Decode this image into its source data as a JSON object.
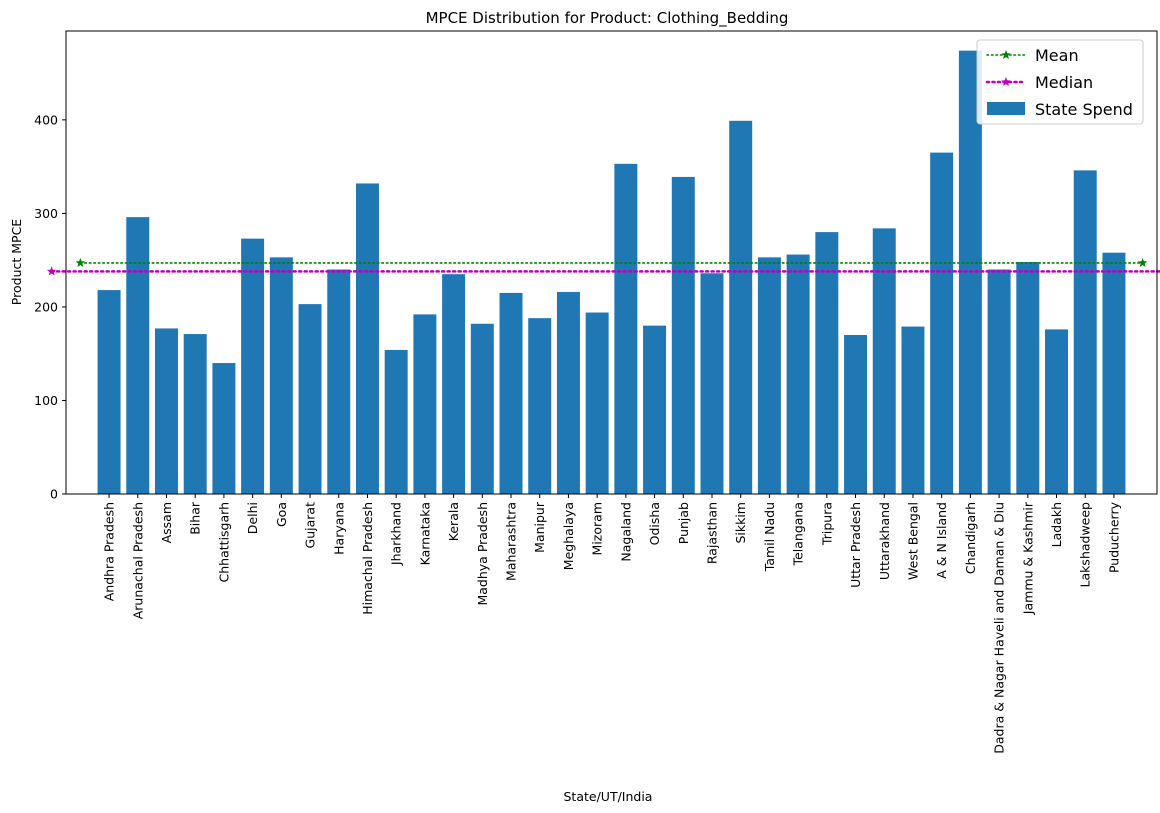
{
  "chart_data": {
    "type": "bar",
    "title": "MPCE Distribution for Product: Clothing_Bedding",
    "xlabel": "State/UT/India",
    "ylabel": "Product MPCE",
    "ylim": [
      0,
      495
    ],
    "yticks": [
      0,
      100,
      200,
      300,
      400
    ],
    "grid": false,
    "legend_position": "top-right",
    "categories": [
      "Andhra Pradesh",
      "Arunachal Pradesh",
      "Assam",
      "Bihar",
      "Chhattisgarh",
      "Delhi",
      "Goa",
      "Gujarat",
      "Haryana",
      "Himachal Pradesh",
      "Jharkhand",
      "Karnataka",
      "Kerala",
      "Madhya Pradesh",
      "Maharashtra",
      "Manipur",
      "Meghalaya",
      "Mizoram",
      "Nagaland",
      "Odisha",
      "Punjab",
      "Rajasthan",
      "Sikkim",
      "Tamil Nadu",
      "Telangana",
      "Tripura",
      "Uttar Pradesh",
      "Uttarakhand",
      "West Bengal",
      "A & N Island",
      "Chandigarh",
      "Dadra & Nagar Haveli and Daman & Diu",
      "Jammu & Kashmir",
      "Ladakh",
      "Lakshadweep",
      "Puducherry"
    ],
    "series": [
      {
        "name": "State Spend",
        "color": "#1f77b4",
        "values": [
          218,
          296,
          177,
          171,
          140,
          273,
          253,
          203,
          240,
          332,
          154,
          192,
          235,
          182,
          215,
          188,
          216,
          194,
          353,
          180,
          339,
          236,
          399,
          253,
          256,
          280,
          170,
          284,
          179,
          365,
          474,
          240,
          248,
          176,
          346,
          258
        ]
      }
    ],
    "reference_lines": [
      {
        "name": "Mean",
        "value": 247,
        "color": "#008000",
        "style": "dotted",
        "marker": "star"
      },
      {
        "name": "Median",
        "value": 238,
        "color": "#bf00bf",
        "style": "dotted",
        "marker": "star"
      }
    ]
  }
}
